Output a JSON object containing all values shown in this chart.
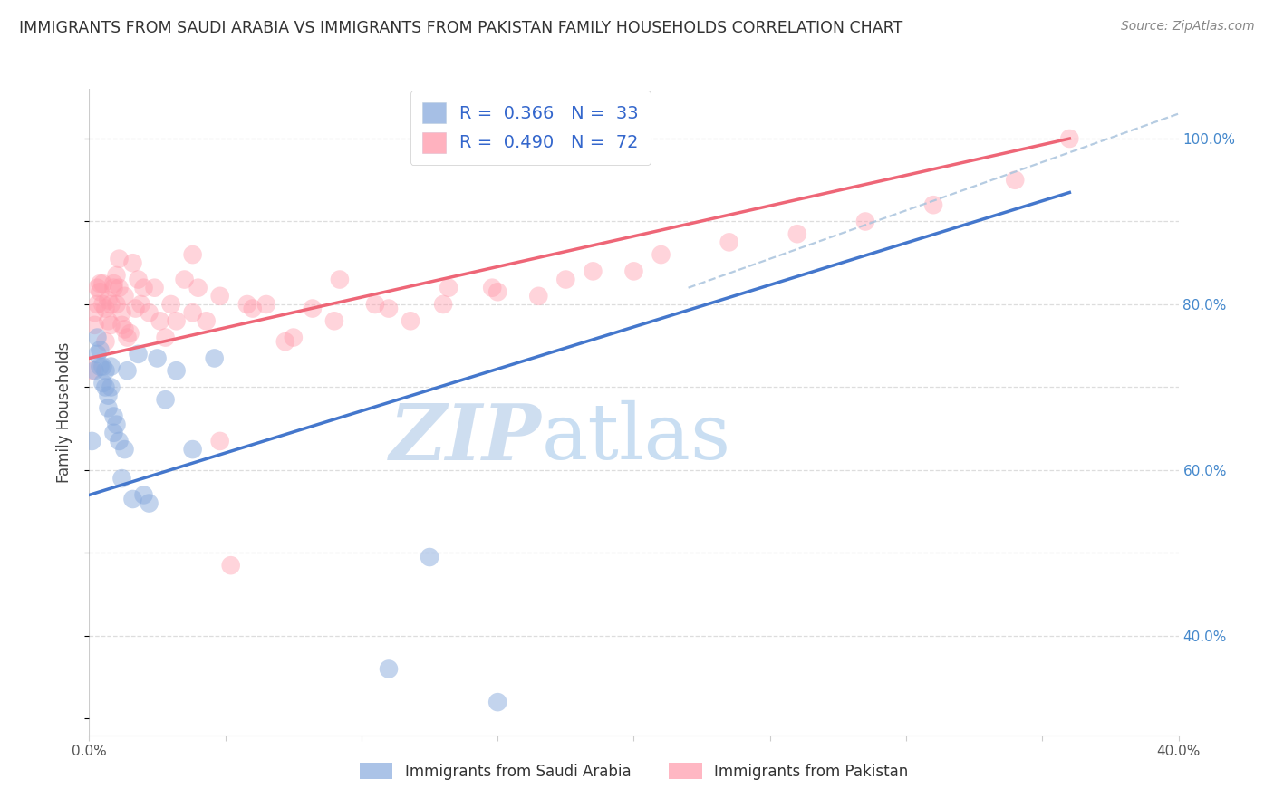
{
  "title": "IMMIGRANTS FROM SAUDI ARABIA VS IMMIGRANTS FROM PAKISTAN FAMILY HOUSEHOLDS CORRELATION CHART",
  "source": "Source: ZipAtlas.com",
  "ylabel_label": "Family Households",
  "xlim": [
    0.0,
    0.4
  ],
  "ylim": [
    0.28,
    1.06
  ],
  "ytick_values": [
    0.4,
    0.5,
    0.6,
    0.7,
    0.8,
    0.9,
    1.0
  ],
  "ytick_labels": [
    "40.0%",
    "",
    "60.0%",
    "",
    "80.0%",
    "",
    "100.0%"
  ],
  "xtick_values": [
    0.0,
    0.05,
    0.1,
    0.15,
    0.2,
    0.25,
    0.3,
    0.35,
    0.4
  ],
  "xtick_labels": [
    "0.0%",
    "",
    "",
    "",
    "",
    "",
    "",
    "",
    "40.0%"
  ],
  "background_color": "#ffffff",
  "grid_color": "#dddddd",
  "title_color": "#333333",
  "blue_color": "#88aadd",
  "pink_color": "#ff99aa",
  "blue_line_color": "#4477cc",
  "pink_line_color": "#ee6677",
  "dashed_line_color": "#aac4dd",
  "legend_color": "#3366cc",
  "legend_R_blue": "0.366",
  "legend_N_blue": "33",
  "legend_R_pink": "0.490",
  "legend_N_pink": "72",
  "saudi_x": [
    0.001,
    0.002,
    0.003,
    0.003,
    0.004,
    0.004,
    0.005,
    0.005,
    0.006,
    0.006,
    0.007,
    0.007,
    0.008,
    0.008,
    0.009,
    0.009,
    0.01,
    0.011,
    0.012,
    0.013,
    0.014,
    0.016,
    0.018,
    0.02,
    0.022,
    0.025,
    0.028,
    0.032,
    0.038,
    0.046,
    0.11,
    0.125,
    0.15
  ],
  "saudi_y": [
    0.635,
    0.72,
    0.76,
    0.74,
    0.745,
    0.725,
    0.725,
    0.705,
    0.72,
    0.7,
    0.69,
    0.675,
    0.725,
    0.7,
    0.665,
    0.645,
    0.655,
    0.635,
    0.59,
    0.625,
    0.72,
    0.565,
    0.74,
    0.57,
    0.56,
    0.735,
    0.685,
    0.72,
    0.625,
    0.735,
    0.36,
    0.495,
    0.32
  ],
  "pakistan_x": [
    0.001,
    0.002,
    0.002,
    0.003,
    0.003,
    0.004,
    0.004,
    0.005,
    0.005,
    0.006,
    0.006,
    0.007,
    0.007,
    0.008,
    0.008,
    0.009,
    0.009,
    0.01,
    0.01,
    0.011,
    0.011,
    0.012,
    0.012,
    0.013,
    0.013,
    0.014,
    0.015,
    0.016,
    0.017,
    0.018,
    0.019,
    0.02,
    0.022,
    0.024,
    0.026,
    0.028,
    0.03,
    0.032,
    0.035,
    0.038,
    0.04,
    0.043,
    0.048,
    0.052,
    0.058,
    0.065,
    0.072,
    0.082,
    0.092,
    0.105,
    0.118,
    0.132,
    0.148,
    0.165,
    0.185,
    0.21,
    0.235,
    0.26,
    0.285,
    0.31,
    0.34,
    0.36,
    0.038,
    0.048,
    0.06,
    0.075,
    0.09,
    0.11,
    0.13,
    0.15,
    0.175,
    0.2
  ],
  "pakistan_y": [
    0.72,
    0.79,
    0.775,
    0.82,
    0.8,
    0.815,
    0.825,
    0.8,
    0.825,
    0.795,
    0.755,
    0.805,
    0.78,
    0.8,
    0.775,
    0.825,
    0.82,
    0.835,
    0.8,
    0.855,
    0.82,
    0.79,
    0.775,
    0.77,
    0.81,
    0.76,
    0.765,
    0.85,
    0.795,
    0.83,
    0.8,
    0.82,
    0.79,
    0.82,
    0.78,
    0.76,
    0.8,
    0.78,
    0.83,
    0.86,
    0.82,
    0.78,
    0.635,
    0.485,
    0.8,
    0.8,
    0.755,
    0.795,
    0.83,
    0.8,
    0.78,
    0.82,
    0.82,
    0.81,
    0.84,
    0.86,
    0.875,
    0.885,
    0.9,
    0.92,
    0.95,
    1.0,
    0.79,
    0.81,
    0.795,
    0.76,
    0.78,
    0.795,
    0.8,
    0.815,
    0.83,
    0.84
  ],
  "blue_trendline_x": [
    0.0,
    0.36
  ],
  "blue_trendline_y": [
    0.57,
    0.935
  ],
  "pink_trendline_x": [
    0.0,
    0.36
  ],
  "pink_trendline_y": [
    0.735,
    1.0
  ],
  "dashed_line_x": [
    0.22,
    0.4
  ],
  "dashed_line_y": [
    0.82,
    1.03
  ]
}
